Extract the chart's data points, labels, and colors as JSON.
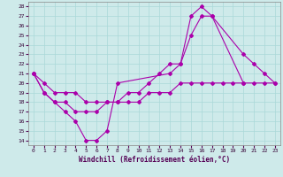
{
  "xlabel": "Windchill (Refroidissement éolien,°C)",
  "bg_color": "#ceeaea",
  "line_color": "#aa00aa",
  "xlim": [
    -0.5,
    23.5
  ],
  "ylim": [
    13.5,
    28.5
  ],
  "yticks": [
    14,
    15,
    16,
    17,
    18,
    19,
    20,
    21,
    22,
    23,
    24,
    25,
    26,
    27,
    28
  ],
  "xticks": [
    0,
    1,
    2,
    3,
    4,
    5,
    6,
    7,
    8,
    9,
    10,
    11,
    12,
    13,
    14,
    15,
    16,
    17,
    18,
    19,
    20,
    21,
    22,
    23
  ],
  "series1_x": [
    0,
    1,
    2,
    3,
    4,
    5,
    6,
    7,
    8,
    13,
    14,
    15,
    16,
    17,
    20,
    21,
    22,
    23
  ],
  "series1_y": [
    21,
    19,
    18,
    17,
    16,
    14,
    14,
    15,
    20,
    21,
    22,
    27,
    28,
    27,
    23,
    22,
    21,
    20
  ],
  "series2_x": [
    0,
    1,
    2,
    3,
    4,
    5,
    6,
    7,
    8,
    9,
    10,
    11,
    12,
    13,
    14,
    15,
    16,
    17,
    20
  ],
  "series2_y": [
    21,
    19,
    18,
    18,
    17,
    17,
    17,
    18,
    18,
    19,
    19,
    20,
    21,
    22,
    22,
    25,
    27,
    27,
    20
  ],
  "series3_x": [
    0,
    1,
    2,
    3,
    4,
    5,
    6,
    7,
    8,
    9,
    10,
    11,
    12,
    13,
    14,
    15,
    16,
    17,
    18,
    19,
    20,
    21,
    22,
    23
  ],
  "series3_y": [
    21,
    20,
    19,
    19,
    19,
    18,
    18,
    18,
    18,
    18,
    18,
    19,
    19,
    19,
    20,
    20,
    20,
    20,
    20,
    20,
    20,
    20,
    20,
    20
  ]
}
